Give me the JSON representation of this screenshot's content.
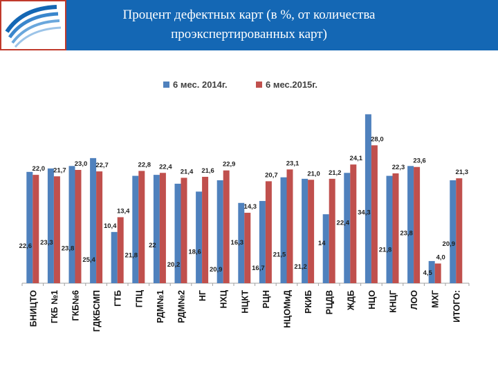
{
  "header": {
    "title_line1": "Процент дефектных карт (в %, от количества",
    "title_line2": "проэкспертированных карт)"
  },
  "logo": {
    "icon": "wave-swirl-logo"
  },
  "colors": {
    "series_2014": "#4f81bd",
    "series_2015": "#c0504d",
    "header_bg": "#1467b4",
    "logo_border": "#c0392b"
  },
  "chart_data": {
    "type": "bar",
    "title": "",
    "xlabel": "",
    "ylabel": "",
    "ylim": [
      0,
      46
    ],
    "grid": false,
    "legend": "top-center",
    "categories": [
      "БНИЦТО",
      "ГКБ №1",
      "ГКБ№6",
      "ГДКБСМП",
      "ГТБ",
      "ГПЦ",
      "РДМ№1",
      "РДМ№2",
      "НГ",
      "НХЦ",
      "НЦКТ",
      "РЦН",
      "НЦОМиД",
      "РКИБ",
      "РЦДВ",
      "ЖДБ",
      "НЦО",
      "КНЦГ",
      "ЛОО",
      "МХГ",
      "ИТОГО:"
    ],
    "series": [
      {
        "name": "6 мес. 2014г.",
        "values": [
          22.6,
          23.3,
          23.8,
          25.4,
          10.4,
          21.8,
          22,
          20.2,
          18.6,
          20.9,
          16.3,
          16.7,
          21.5,
          21.2,
          14,
          22.4,
          34.3,
          21.8,
          23.8,
          4.5,
          20.9
        ],
        "labels": [
          "22,6",
          "23,3",
          "23,8",
          "25,4",
          "10,4",
          "21,8",
          "22",
          "20,2",
          "18,6",
          "20,9",
          "16,3",
          "16,7",
          "21,5",
          "21,2",
          "14",
          "22,4",
          "34,3",
          "21,8",
          "23,8",
          "4,5",
          "20,9"
        ]
      },
      {
        "name": "6 мес.2015г.",
        "values": [
          22.0,
          21.7,
          23.0,
          22.7,
          13.4,
          22.8,
          22.4,
          21.4,
          21.6,
          22.9,
          14.3,
          20.7,
          23.1,
          21.0,
          21.2,
          24.1,
          28.0,
          22.3,
          23.6,
          4.0,
          21.3
        ],
        "labels": [
          "22,0",
          "21,7",
          "23,0",
          "22,7",
          "13,4",
          "22,8",
          "22,4",
          "21,4",
          "21,6",
          "22,9",
          "14,3",
          "20,7",
          "23,1",
          "21,0",
          "21,2",
          "24,1",
          "28,0",
          "22,3",
          "23,6",
          "4,0",
          "21,3"
        ]
      }
    ]
  }
}
